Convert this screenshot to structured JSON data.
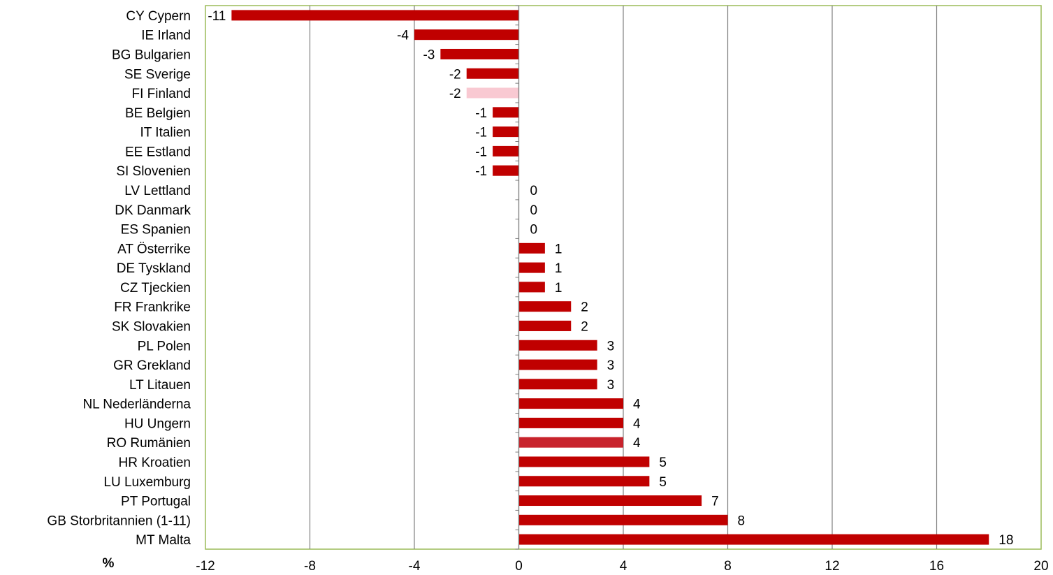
{
  "chart_data": {
    "type": "bar",
    "orientation": "horizontal",
    "categories": [
      "CY Cypern",
      "IE Irland",
      "BG Bulgarien",
      "SE Sverige",
      "FI Finland",
      "BE Belgien",
      "IT Italien",
      "EE Estland",
      "SI Slovenien",
      "LV Lettland",
      "DK Danmark",
      "ES Spanien",
      "AT Österrike",
      "DE Tyskland",
      "CZ Tjeckien",
      "FR Frankrike",
      "SK Slovakien",
      "PL Polen",
      "GR Grekland",
      "LT Litauen",
      "NL Nederländerna",
      "HU Ungern",
      "RO Rumänien",
      "HR Kroatien",
      "LU Luxemburg",
      "PT Portugal",
      "GB Storbritannien (1-11)",
      "MT Malta"
    ],
    "values": [
      -11,
      -4,
      -3,
      -2,
      -2,
      -1,
      -1,
      -1,
      -1,
      0,
      0,
      0,
      1,
      1,
      1,
      2,
      2,
      3,
      3,
      3,
      4,
      4,
      4,
      5,
      5,
      7,
      8,
      18
    ],
    "data_labels": [
      "-11",
      "-4",
      "-3",
      "-2",
      "-2",
      "-1",
      "-1",
      "-1",
      "-1",
      "0",
      "0",
      "0",
      "1",
      "1",
      "1",
      "2",
      "2",
      "3",
      "3",
      "3",
      "4",
      "4",
      "4",
      "5",
      "5",
      "7",
      "8",
      "18"
    ],
    "highlight": {
      "FI Finland": "#f9c9d2",
      "RO Rumänien": "#c8232c"
    },
    "xlim": [
      -12,
      20
    ],
    "x_ticks": [
      -12,
      -8,
      -4,
      0,
      4,
      8,
      12,
      16,
      20
    ],
    "x_tick_labels": [
      "-12",
      "-8",
      "-4",
      "0",
      "4",
      "8",
      "12",
      "16",
      "20"
    ],
    "unit_label": "%",
    "grid": true,
    "colors": {
      "bar": "#c00000",
      "grid": "#808080",
      "plot_border": "#9bbb59",
      "axis": "#808080"
    }
  }
}
